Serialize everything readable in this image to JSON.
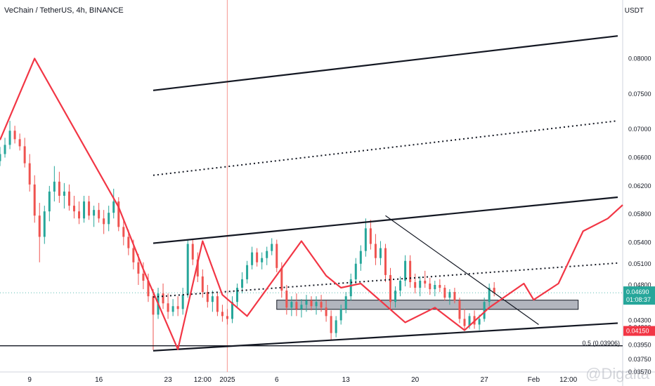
{
  "header": {
    "title": "VeChain / TetherUS, 4h, BINANCE",
    "currency": "USDT"
  },
  "watermark": "@Digaita",
  "chart_data": {
    "type": "line",
    "ylim": [
      0.0357,
      0.0853
    ],
    "y_ticks": [
      "0.08000",
      "0.07500",
      "0.07000",
      "0.06600",
      "0.06200",
      "0.05800",
      "0.05400",
      "0.05100",
      "0.04800",
      "0.04300",
      "0.04200",
      "0.03950",
      "0.03750",
      "0.03570"
    ],
    "y_tick_values": [
      0.08,
      0.075,
      0.07,
      0.066,
      0.062,
      0.058,
      0.054,
      0.051,
      0.048,
      0.043,
      0.042,
      0.0395,
      0.0375,
      0.0357
    ],
    "x_ticks": [
      {
        "label": "9",
        "t": 0
      },
      {
        "label": "16",
        "t": 7
      },
      {
        "label": "23",
        "t": 14
      },
      {
        "label": "12:00",
        "t": 17.5
      },
      {
        "label": "2025",
        "t": 20
      },
      {
        "label": "6",
        "t": 25
      },
      {
        "label": "13",
        "t": 32
      },
      {
        "label": "20",
        "t": 39
      },
      {
        "label": "27",
        "t": 46
      },
      {
        "label": "Feb",
        "t": 51
      },
      {
        "label": "12:00",
        "t": 54.5
      }
    ],
    "xlim": [
      -3,
      60
    ],
    "current_price": {
      "value": 0.0469,
      "label": "0.04690",
      "countdown": "01:08:37"
    },
    "red_level": {
      "value": 0.0415,
      "label": "0.04150"
    },
    "fib_level": {
      "value": 0.03906,
      "label": "0.5 (0.03906)"
    },
    "session_line_t": 20,
    "candles": [
      [
        -3.0,
        0.0655,
        0.0675,
        0.0648,
        0.0665
      ],
      [
        -2.5,
        0.0665,
        0.0688,
        0.066,
        0.0678
      ],
      [
        -2.0,
        0.0678,
        0.0712,
        0.0672,
        0.0698
      ],
      [
        -1.5,
        0.0698,
        0.0705,
        0.068,
        0.0686
      ],
      [
        -1.0,
        0.0686,
        0.0694,
        0.067,
        0.0676
      ],
      [
        -0.5,
        0.0676,
        0.0688,
        0.0646,
        0.0652
      ],
      [
        0.0,
        0.0652,
        0.0665,
        0.0612,
        0.0622
      ],
      [
        0.5,
        0.0622,
        0.0635,
        0.0568,
        0.0578
      ],
      [
        1.0,
        0.0578,
        0.0596,
        0.0512,
        0.0548
      ],
      [
        1.5,
        0.0548,
        0.0592,
        0.0538,
        0.0584
      ],
      [
        2.0,
        0.0584,
        0.062,
        0.057,
        0.0612
      ],
      [
        2.5,
        0.0612,
        0.0648,
        0.0598,
        0.0626
      ],
      [
        3.0,
        0.0626,
        0.064,
        0.0596,
        0.0606
      ],
      [
        3.5,
        0.0606,
        0.0624,
        0.0588,
        0.0612
      ],
      [
        4.0,
        0.0612,
        0.0622,
        0.0585,
        0.0592
      ],
      [
        4.5,
        0.0592,
        0.0606,
        0.0574,
        0.0584
      ],
      [
        5.0,
        0.0584,
        0.0598,
        0.0566,
        0.0574
      ],
      [
        5.5,
        0.0574,
        0.0606,
        0.0568,
        0.0598
      ],
      [
        6.0,
        0.0598,
        0.0606,
        0.0572,
        0.0578
      ],
      [
        6.5,
        0.0578,
        0.0592,
        0.0562,
        0.0586
      ],
      [
        7.0,
        0.0586,
        0.0596,
        0.0568,
        0.0574
      ],
      [
        7.5,
        0.0574,
        0.0586,
        0.0552,
        0.0566
      ],
      [
        8.0,
        0.0566,
        0.0592,
        0.0556,
        0.0582
      ],
      [
        8.5,
        0.0582,
        0.0616,
        0.0574,
        0.0598
      ],
      [
        9.0,
        0.0598,
        0.0604,
        0.0556,
        0.0562
      ],
      [
        9.5,
        0.0562,
        0.0574,
        0.0536,
        0.0548
      ],
      [
        10.0,
        0.0548,
        0.0558,
        0.0522,
        0.0532
      ],
      [
        10.5,
        0.0532,
        0.0544,
        0.0502,
        0.0512
      ],
      [
        11.0,
        0.0512,
        0.0524,
        0.048,
        0.0496
      ],
      [
        11.5,
        0.0496,
        0.0512,
        0.0474,
        0.0486
      ],
      [
        12.0,
        0.0486,
        0.0496,
        0.0456,
        0.0464
      ],
      [
        12.5,
        0.0464,
        0.0474,
        0.0388,
        0.0438
      ],
      [
        13.0,
        0.0438,
        0.0476,
        0.0432,
        0.0468
      ],
      [
        13.5,
        0.0468,
        0.0482,
        0.0446,
        0.0454
      ],
      [
        14.0,
        0.0454,
        0.0468,
        0.0432,
        0.0442
      ],
      [
        14.5,
        0.0442,
        0.046,
        0.0436,
        0.045
      ],
      [
        15.0,
        0.045,
        0.0464,
        0.0436,
        0.0446
      ],
      [
        15.5,
        0.0446,
        0.0476,
        0.0438,
        0.0466
      ],
      [
        16.0,
        0.0466,
        0.0544,
        0.0462,
        0.0538
      ],
      [
        16.5,
        0.0538,
        0.0544,
        0.0508,
        0.0516
      ],
      [
        17.0,
        0.0516,
        0.0526,
        0.0484,
        0.0492
      ],
      [
        17.5,
        0.0492,
        0.0502,
        0.0462,
        0.047
      ],
      [
        18.0,
        0.047,
        0.048,
        0.0448,
        0.0456
      ],
      [
        18.5,
        0.0456,
        0.0472,
        0.0442,
        0.0464
      ],
      [
        19.0,
        0.0464,
        0.047,
        0.0436,
        0.0442
      ],
      [
        19.5,
        0.0442,
        0.0452,
        0.0428,
        0.0436
      ],
      [
        20.0,
        0.0436,
        0.0446,
        0.0424,
        0.0432
      ],
      [
        20.5,
        0.0432,
        0.0464,
        0.0426,
        0.0456
      ],
      [
        21.0,
        0.0456,
        0.0482,
        0.0448,
        0.0476
      ],
      [
        21.5,
        0.0476,
        0.0498,
        0.0468,
        0.0488
      ],
      [
        22.0,
        0.0488,
        0.0514,
        0.0482,
        0.0508
      ],
      [
        22.5,
        0.0508,
        0.0534,
        0.0502,
        0.0526
      ],
      [
        23.0,
        0.0526,
        0.0532,
        0.0506,
        0.0512
      ],
      [
        23.5,
        0.0512,
        0.0526,
        0.0502,
        0.0518
      ],
      [
        24.0,
        0.0518,
        0.0534,
        0.0508,
        0.0528
      ],
      [
        24.5,
        0.0528,
        0.0546,
        0.0522,
        0.0538
      ],
      [
        25.0,
        0.0538,
        0.0544,
        0.0498,
        0.0504
      ],
      [
        25.5,
        0.0504,
        0.0512,
        0.0462,
        0.0472
      ],
      [
        26.0,
        0.0472,
        0.048,
        0.0438,
        0.0448
      ],
      [
        26.5,
        0.0448,
        0.0464,
        0.0436,
        0.0456
      ],
      [
        27.0,
        0.0456,
        0.0468,
        0.0436,
        0.0446
      ],
      [
        27.5,
        0.0446,
        0.046,
        0.0434,
        0.0452
      ],
      [
        28.0,
        0.0452,
        0.0466,
        0.0442,
        0.0458
      ],
      [
        28.5,
        0.0458,
        0.0464,
        0.0444,
        0.045
      ],
      [
        29.0,
        0.045,
        0.0464,
        0.0438,
        0.0456
      ],
      [
        29.5,
        0.0456,
        0.0466,
        0.0442,
        0.0448
      ],
      [
        30.0,
        0.0448,
        0.0458,
        0.0428,
        0.0436
      ],
      [
        30.5,
        0.0436,
        0.0444,
        0.0402,
        0.0412
      ],
      [
        31.0,
        0.0412,
        0.0436,
        0.0406,
        0.043
      ],
      [
        31.5,
        0.043,
        0.0452,
        0.0424,
        0.0446
      ],
      [
        32.0,
        0.0446,
        0.047,
        0.044,
        0.0464
      ],
      [
        32.5,
        0.0464,
        0.0496,
        0.0458,
        0.0488
      ],
      [
        33.0,
        0.0488,
        0.0518,
        0.048,
        0.051
      ],
      [
        33.5,
        0.051,
        0.0536,
        0.05,
        0.0528
      ],
      [
        34.0,
        0.0528,
        0.0574,
        0.052,
        0.056
      ],
      [
        34.5,
        0.056,
        0.0572,
        0.053,
        0.0538
      ],
      [
        35.0,
        0.0538,
        0.0552,
        0.0508,
        0.0518
      ],
      [
        35.5,
        0.0518,
        0.0542,
        0.0508,
        0.0532
      ],
      [
        36.0,
        0.0532,
        0.0538,
        0.0484,
        0.0494
      ],
      [
        36.5,
        0.0494,
        0.0504,
        0.0446,
        0.0456
      ],
      [
        37.0,
        0.0456,
        0.0478,
        0.0448,
        0.0472
      ],
      [
        37.5,
        0.0472,
        0.0492,
        0.0464,
        0.0486
      ],
      [
        38.0,
        0.0486,
        0.0522,
        0.0478,
        0.0514
      ],
      [
        38.5,
        0.0514,
        0.0522,
        0.0476,
        0.0484
      ],
      [
        39.0,
        0.0484,
        0.0496,
        0.0468,
        0.0476
      ],
      [
        39.5,
        0.0476,
        0.0492,
        0.0464,
        0.0486
      ],
      [
        40.0,
        0.0486,
        0.05,
        0.0476,
        0.0482
      ],
      [
        40.5,
        0.0482,
        0.049,
        0.0466,
        0.0474
      ],
      [
        41.0,
        0.0474,
        0.0486,
        0.0464,
        0.048
      ],
      [
        41.5,
        0.048,
        0.0488,
        0.047,
        0.0476
      ],
      [
        42.0,
        0.0476,
        0.048,
        0.0458,
        0.0462
      ],
      [
        42.5,
        0.0462,
        0.0474,
        0.0452,
        0.047
      ],
      [
        43.0,
        0.047,
        0.0476,
        0.0454,
        0.0458
      ],
      [
        43.5,
        0.0458,
        0.0462,
        0.0426,
        0.0432
      ],
      [
        44.0,
        0.0432,
        0.0446,
        0.0416,
        0.0422
      ],
      [
        44.5,
        0.0422,
        0.044,
        0.0418,
        0.0436
      ],
      [
        45.0,
        0.0436,
        0.0444,
        0.0418,
        0.0424
      ],
      [
        45.5,
        0.0424,
        0.0438,
        0.0416,
        0.0432
      ],
      [
        46.0,
        0.0432,
        0.0462,
        0.0428,
        0.0456
      ],
      [
        46.5,
        0.0456,
        0.0482,
        0.045,
        0.0476
      ],
      [
        47.0,
        0.0476,
        0.0484,
        0.0464,
        0.0469
      ]
    ],
    "channel_lines": [
      {
        "style": "solid",
        "t1": 12.5,
        "v1": 0.0755,
        "t2": 59.5,
        "v2": 0.0832
      },
      {
        "style": "dotted",
        "t1": 12.5,
        "v1": 0.0635,
        "t2": 59.5,
        "v2": 0.0712
      },
      {
        "style": "solid",
        "t1": 12.5,
        "v1": 0.0539,
        "t2": 59.5,
        "v2": 0.0604
      },
      {
        "style": "dotted",
        "t1": 12.5,
        "v1": 0.0463,
        "t2": 59.5,
        "v2": 0.0511
      },
      {
        "style": "solid",
        "t1": 12.5,
        "v1": 0.0387,
        "t2": 59.5,
        "v2": 0.0426
      }
    ],
    "trend_line": {
      "t1": 36.0,
      "v1": 0.0578,
      "t2": 51.5,
      "v2": 0.0424
    },
    "support_line": {
      "t1": -3,
      "v1": 0.0394,
      "t2": 60,
      "v2": 0.0394
    },
    "zone": {
      "t1": 25.0,
      "t2": 55.5,
      "v_low": 0.04455,
      "v_high": 0.04585
    },
    "zigzag": [
      [
        -3,
        0.0685
      ],
      [
        0.5,
        0.08
      ],
      [
        9,
        0.059
      ],
      [
        11.5,
        0.0502
      ],
      [
        15,
        0.0389
      ],
      [
        17.5,
        0.0542
      ],
      [
        19.5,
        0.0466
      ],
      [
        22,
        0.0436
      ],
      [
        27.5,
        0.0542
      ],
      [
        30,
        0.0493
      ],
      [
        31.5,
        0.0476
      ],
      [
        33.5,
        0.0482
      ],
      [
        38,
        0.0427
      ],
      [
        41,
        0.0448
      ],
      [
        44,
        0.0416
      ],
      [
        46.5,
        0.0448
      ],
      [
        50,
        0.0482
      ],
      [
        51,
        0.0459
      ],
      [
        53.5,
        0.0482
      ],
      [
        56,
        0.0556
      ],
      [
        58.5,
        0.0574
      ],
      [
        60,
        0.0593
      ]
    ]
  }
}
